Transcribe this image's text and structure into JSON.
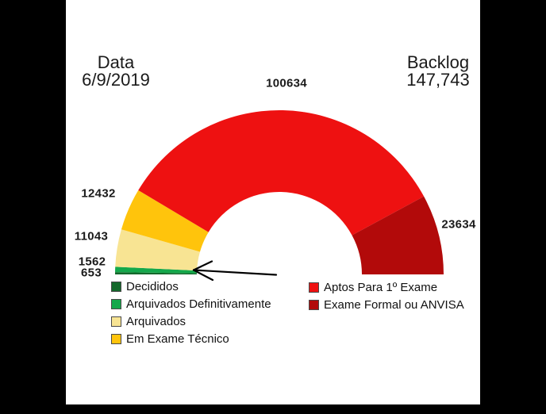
{
  "header": {
    "date_label": "Data",
    "date_value": "6/9/2019",
    "backlog_label": "Backlog",
    "backlog_value": "147,743"
  },
  "chart_data": {
    "type": "pie",
    "subtype": "half-donut-gauge",
    "orientation": "semicircle 180 degrees, flat side down, drawn left to right",
    "legend_position": "bottom, two columns",
    "background_color": "#ffffff",
    "page_background_color": "#000000",
    "segments": [
      {
        "label": "Decididos",
        "value": 653,
        "color": "#14682B"
      },
      {
        "label": "Arquivados Definitivamente",
        "value": 1562,
        "color": "#14A84B"
      },
      {
        "label": "Arquivados",
        "value": 11043,
        "color": "#F8E493"
      },
      {
        "label": "Em Exame Técnico",
        "value": 12432,
        "color": "#FFC40C"
      },
      {
        "label": "Aptos Para 1º Exame",
        "value": 100634,
        "color": "#EE1111"
      },
      {
        "label": "Exame Formal ou ANVISA",
        "value": 23634,
        "color": "#B20A0A"
      }
    ],
    "annotations": [
      {
        "type": "arrow",
        "points_to": "thin green segments at lower left (Decididos / Arquivados Definitivamente)"
      }
    ]
  }
}
